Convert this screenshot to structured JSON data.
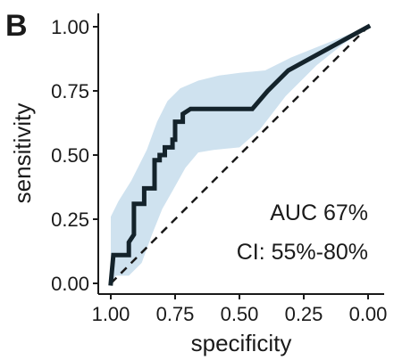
{
  "panel_label": "B",
  "chart_data": {
    "type": "line",
    "xlabel": "specificity",
    "ylabel": "sensitivity",
    "x_reversed": true,
    "xlim": [
      1.0,
      0.0
    ],
    "ylim": [
      0.0,
      1.0
    ],
    "xticks": [
      1.0,
      0.75,
      0.5,
      0.25,
      0.0
    ],
    "xtick_labels": [
      "1.00",
      "0.75",
      "0.50",
      "0.25",
      "0.00"
    ],
    "yticks": [
      0.0,
      0.25,
      0.5,
      0.75,
      1.0
    ],
    "ytick_labels": [
      "0.00",
      "0.25",
      "0.50",
      "0.75",
      "1.00"
    ],
    "grid": false,
    "colors": {
      "roc_line": "#14232b",
      "ci_band": "#cfe2ef",
      "reference_line": "#1a1a1a"
    },
    "series": [
      {
        "values": [
          [
            1.0,
            0.0
          ],
          [
            0.99,
            0.11
          ],
          [
            0.93,
            0.11
          ],
          [
            0.93,
            0.16
          ],
          [
            0.91,
            0.19
          ],
          [
            0.91,
            0.31
          ],
          [
            0.87,
            0.31
          ],
          [
            0.87,
            0.37
          ],
          [
            0.83,
            0.37
          ],
          [
            0.83,
            0.48
          ],
          [
            0.81,
            0.48
          ],
          [
            0.81,
            0.5
          ],
          [
            0.79,
            0.5
          ],
          [
            0.79,
            0.53
          ],
          [
            0.76,
            0.53
          ],
          [
            0.76,
            0.56
          ],
          [
            0.75,
            0.56
          ],
          [
            0.75,
            0.63
          ],
          [
            0.72,
            0.63
          ],
          [
            0.72,
            0.66
          ],
          [
            0.69,
            0.68
          ],
          [
            0.45,
            0.68
          ],
          [
            0.39,
            0.75
          ],
          [
            0.31,
            0.83
          ],
          [
            0.0,
            1.0
          ]
        ]
      }
    ],
    "confidence_band": {
      "upper": [
        [
          1.0,
          0.26
        ],
        [
          0.97,
          0.32
        ],
        [
          0.92,
          0.4
        ],
        [
          0.86,
          0.52
        ],
        [
          0.82,
          0.63
        ],
        [
          0.78,
          0.71
        ],
        [
          0.73,
          0.76
        ],
        [
          0.66,
          0.79
        ],
        [
          0.58,
          0.81
        ],
        [
          0.5,
          0.82
        ],
        [
          0.4,
          0.83
        ],
        [
          0.3,
          0.88
        ],
        [
          0.2,
          0.92
        ],
        [
          0.1,
          0.96
        ],
        [
          0.0,
          1.0
        ]
      ],
      "lower": [
        [
          1.0,
          0.0
        ],
        [
          0.98,
          0.03
        ],
        [
          0.93,
          0.03
        ],
        [
          0.88,
          0.08
        ],
        [
          0.84,
          0.19
        ],
        [
          0.8,
          0.29
        ],
        [
          0.76,
          0.36
        ],
        [
          0.71,
          0.45
        ],
        [
          0.66,
          0.51
        ],
        [
          0.6,
          0.52
        ],
        [
          0.5,
          0.53
        ],
        [
          0.42,
          0.6
        ],
        [
          0.32,
          0.73
        ],
        [
          0.2,
          0.85
        ],
        [
          0.1,
          0.93
        ],
        [
          0.0,
          1.0
        ]
      ]
    },
    "reference_line": [
      [
        1.0,
        0.0
      ],
      [
        0.0,
        1.0
      ]
    ],
    "annotations": [
      "AUC 67%",
      "CI: 55%-80%"
    ]
  }
}
